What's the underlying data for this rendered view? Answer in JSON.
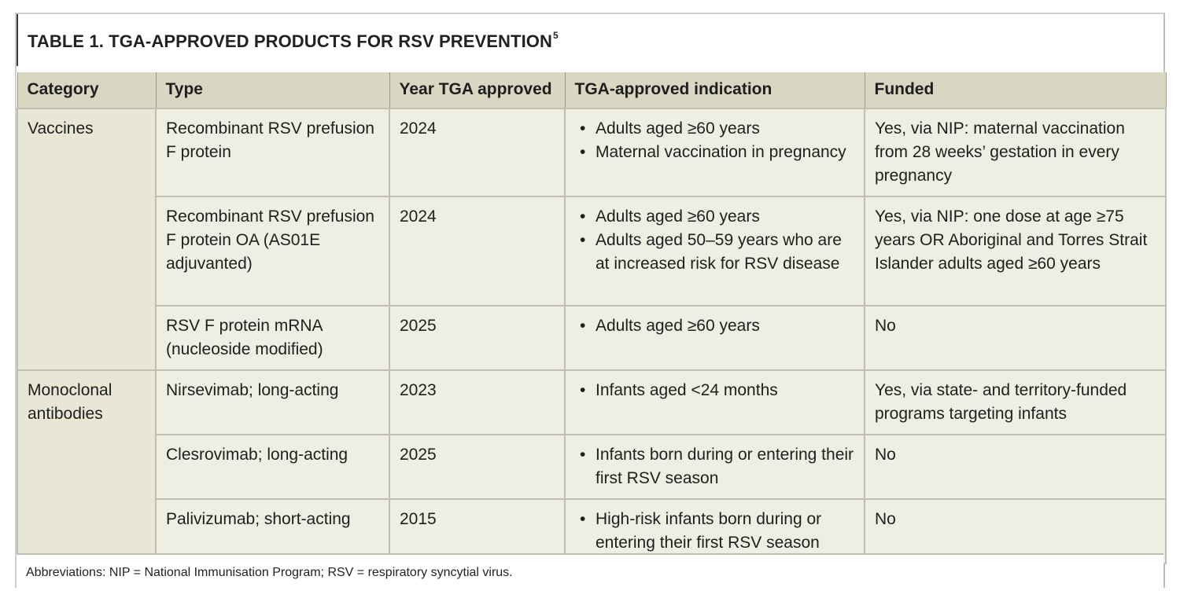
{
  "title": {
    "main": "TABLE 1. TGA-APPROVED PRODUCTS FOR RSV PREVENTION",
    "ref": "5"
  },
  "headers": [
    "Category",
    "Type",
    "Year TGA approved",
    "TGA-approved indication",
    "Funded"
  ],
  "groups": [
    {
      "category": "Vaccines",
      "rows": [
        {
          "type": "Recombinant RSV prefusion F protein",
          "year": "2024",
          "indications": [
            "Adults aged ≥60 years",
            "Maternal vaccination in pregnancy"
          ],
          "funded": "Yes, via NIP: maternal vaccination from 28 weeks’ gestation in every pregnancy"
        },
        {
          "type": "Recombinant RSV prefusion F protein OA (AS01E  adjuvanted)",
          "year": "2024",
          "indications": [
            "Adults aged ≥60 years",
            "Adults aged 50–59 years who are at increased risk for RSV disease"
          ],
          "funded": "Yes, via NIP: one dose at age ≥75 years OR Aboriginal and Torres Strait Islander adults aged ≥60 years"
        },
        {
          "type": "RSV F protein mRNA (nucleoside modified)",
          "year": "2025",
          "indications": [
            "Adults aged ≥60 years"
          ],
          "funded": "No"
        }
      ]
    },
    {
      "category": "Monoclonal antibodies",
      "rows": [
        {
          "type": "Nirsevimab; long-acting",
          "year": "2023",
          "indications": [
            "Infants aged <24 months"
          ],
          "funded": "Yes, via state- and territory-funded programs targeting infants"
        },
        {
          "type": "Clesrovimab; long-acting",
          "year": "2025",
          "indications": [
            "Infants born during or entering their first RSV season"
          ],
          "funded": "No"
        },
        {
          "type": "Palivizumab; short-acting",
          "year": "2015",
          "indications": [
            "High-risk infants born during or entering their first RSV season"
          ],
          "funded": "No"
        }
      ]
    }
  ],
  "footnote": "Abbreviations: NIP = National Immunisation Program; RSV = respiratory syncytial virus."
}
